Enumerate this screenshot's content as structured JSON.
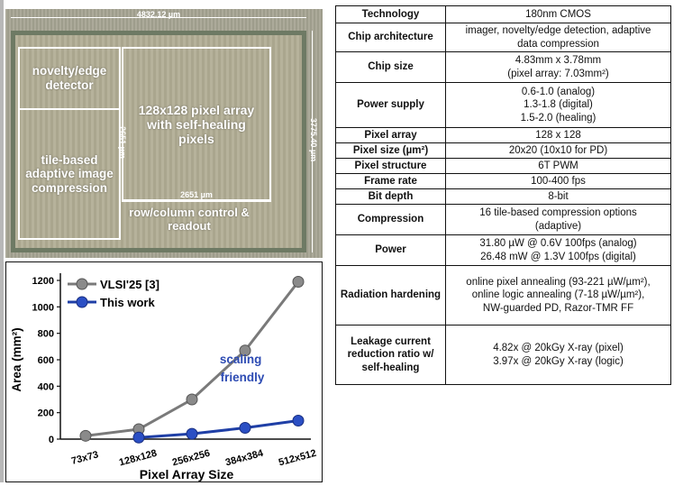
{
  "chip": {
    "width_label": "4832.12 µm",
    "height_label": "3775.40 µm",
    "regions": {
      "novelty": "novelty/edge detector",
      "compression": "tile-based adaptive image compression",
      "pixel_array": "128x128 pixel array with self-healing pixels",
      "control": "row/column control & readout"
    },
    "array_width_label": "2651 µm",
    "array_height_label": "2651 µm"
  },
  "chart_data": {
    "type": "line",
    "categories": [
      "73x73",
      "128x128",
      "256x256",
      "384x384",
      "512x512"
    ],
    "xlabel": "Pixel Array Size",
    "ylabel": "Area (mm²)",
    "ylim": [
      0,
      1200
    ],
    "yticks": [
      0,
      200,
      400,
      600,
      800,
      1000,
      1200
    ],
    "series": [
      {
        "name": "VLSI'25 [3]",
        "color": "#7a7a7a",
        "values": [
          25,
          75,
          300,
          670,
          1190
        ]
      },
      {
        "name": "This work",
        "color": "#1f3fa6",
        "values": [
          null,
          12,
          40,
          85,
          140
        ]
      }
    ],
    "legend": "top-left",
    "annotation": "scaling friendly"
  },
  "table": [
    {
      "key": "Technology",
      "value": [
        "180nm CMOS"
      ]
    },
    {
      "key": "Chip architecture",
      "value": [
        "imager, novelty/edge detection, adaptive",
        "data compression"
      ]
    },
    {
      "key": "Chip size",
      "value": [
        "4.83mm x 3.78mm",
        "(pixel array: 7.03mm²)"
      ]
    },
    {
      "key": "Power supply",
      "value": [
        "0.6-1.0 (analog)",
        "1.3-1.8 (digital)",
        "1.5-2.0 (healing)"
      ]
    },
    {
      "key": "Pixel array",
      "value": [
        "128 x 128"
      ]
    },
    {
      "key": "Pixel size (µm²)",
      "value": [
        "20x20 (10x10 for PD)"
      ]
    },
    {
      "key": "Pixel structure",
      "value": [
        "6T PWM"
      ]
    },
    {
      "key": "Frame rate",
      "value": [
        "100-400 fps"
      ]
    },
    {
      "key": "Bit depth",
      "value": [
        "8-bit"
      ]
    },
    {
      "key": "Compression",
      "value": [
        "16 tile-based compression options",
        "(adaptive)"
      ]
    },
    {
      "key": "Power",
      "value": [
        "31.80 µW @ 0.6V 100fps (analog)",
        "26.48 mW @ 1.3V 100fps (digital)"
      ]
    },
    {
      "key": "Radiation hardening",
      "value": [
        "online pixel annealing (93-221 µW/µm²),",
        "online logic annealing (7-18 µW/µm²),",
        "NW-guarded PD, Razor-TMR FF"
      ]
    },
    {
      "key": "Leakage current reduction ratio w/ self-healing",
      "value": [
        "4.82x @ 20kGy X-ray (pixel)",
        "3.97x @ 20kGy X-ray (logic)"
      ]
    }
  ]
}
